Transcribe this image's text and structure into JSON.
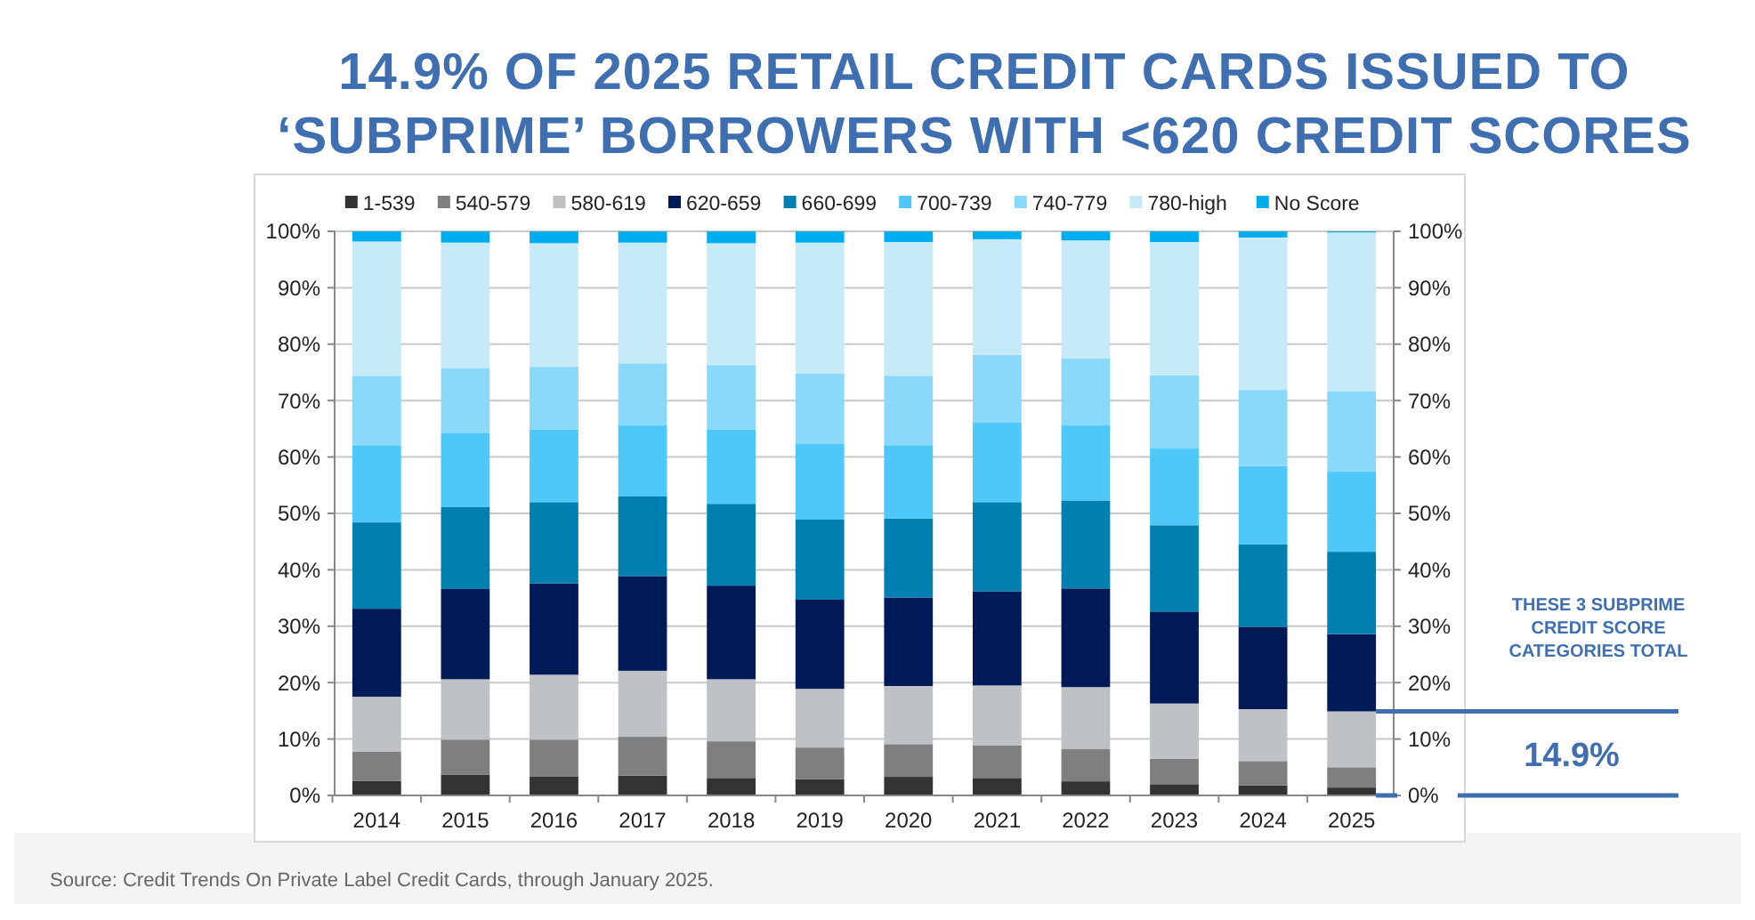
{
  "chart_data": {
    "type": "bar",
    "stacked": true,
    "title": "14.9% OF 2025 RETAIL CREDIT CARDS ISSUED TO\n‘SUBPRIME’ BORROWERS WITH <620 CREDIT SCORES",
    "categories": [
      "2014",
      "2015",
      "2016",
      "2017",
      "2018",
      "2019",
      "2020",
      "2021",
      "2022",
      "2023",
      "2024",
      "2025"
    ],
    "series": [
      {
        "name": "1-539",
        "color": "#333333",
        "values": [
          2.6,
          3.7,
          3.4,
          3.5,
          3.1,
          2.9,
          3.3,
          3.1,
          2.5,
          2.0,
          1.8,
          1.4
        ]
      },
      {
        "name": "540-579",
        "color": "#7f7f7f",
        "values": [
          5.2,
          6.2,
          6.5,
          6.9,
          6.5,
          5.6,
          5.8,
          5.8,
          5.7,
          4.5,
          4.3,
          3.6
        ]
      },
      {
        "name": "580-619",
        "color": "#bfc2c5",
        "values": [
          9.7,
          10.7,
          11.5,
          11.7,
          11.0,
          10.4,
          10.3,
          10.6,
          11.0,
          9.8,
          9.2,
          9.9
        ]
      },
      {
        "name": "620-659",
        "color": "#001a57",
        "values": [
          15.6,
          16.0,
          16.2,
          16.8,
          16.6,
          15.8,
          15.7,
          16.7,
          17.5,
          16.3,
          14.6,
          13.7
        ]
      },
      {
        "name": "660-699",
        "color": "#0080b0",
        "values": [
          15.3,
          14.5,
          14.4,
          14.1,
          14.5,
          14.2,
          14.0,
          15.8,
          15.6,
          15.3,
          14.6,
          14.6
        ]
      },
      {
        "name": "700-739",
        "color": "#4dc8f8",
        "values": [
          13.7,
          13.1,
          12.9,
          12.6,
          13.2,
          13.5,
          13.0,
          14.1,
          13.3,
          13.6,
          13.9,
          14.2
        ]
      },
      {
        "name": "740-779",
        "color": "#8ad8fa",
        "values": [
          12.3,
          11.5,
          11.1,
          11.0,
          11.4,
          12.4,
          12.3,
          12.0,
          11.9,
          13.0,
          13.5,
          14.2
        ]
      },
      {
        "name": "780-high",
        "color": "#c6eaf8",
        "values": [
          23.8,
          22.3,
          21.9,
          21.4,
          21.6,
          23.2,
          23.7,
          20.5,
          20.9,
          23.6,
          27.0,
          28.2
        ]
      },
      {
        "name": "No Score",
        "color": "#00aeef",
        "values": [
          1.8,
          2.0,
          2.1,
          2.0,
          2.1,
          2.0,
          1.9,
          1.4,
          1.6,
          1.9,
          1.1,
          0.2
        ]
      }
    ],
    "ylim": [
      0,
      100
    ],
    "yticks": [
      {
        "value": 0,
        "label": "0%"
      },
      {
        "value": 10,
        "label": "10%"
      },
      {
        "value": 20,
        "label": "20%"
      },
      {
        "value": 30,
        "label": "30%"
      },
      {
        "value": 40,
        "label": "40%"
      },
      {
        "value": 50,
        "label": "50%"
      },
      {
        "value": 60,
        "label": "60%"
      },
      {
        "value": 70,
        "label": "70%"
      },
      {
        "value": 80,
        "label": "80%"
      },
      {
        "value": 90,
        "label": "90%"
      },
      {
        "value": 100,
        "label": "100%"
      }
    ],
    "y2lim": [
      0,
      100
    ],
    "y2ticks": [
      {
        "value": 0,
        "label": "0%"
      },
      {
        "value": 10,
        "label": "10%"
      },
      {
        "value": 20,
        "label": "20%"
      },
      {
        "value": 30,
        "label": "30%"
      },
      {
        "value": 40,
        "label": "40%"
      },
      {
        "value": 50,
        "label": "50%"
      },
      {
        "value": 60,
        "label": "60%"
      },
      {
        "value": 70,
        "label": "70%"
      },
      {
        "value": 80,
        "label": "80%"
      },
      {
        "value": 90,
        "label": "90%"
      },
      {
        "value": 100,
        "label": "100%"
      }
    ],
    "grid": "y",
    "legend": "top",
    "annotations": [
      {
        "text": "THESE 3 SUBPRIME CREDIT SCORE CATEGORIES TOTAL"
      },
      "14.9%",
      {
        "text": "Source: Credit Trends On Private Label Credit Cards, through January 2025."
      }
    ]
  }
}
